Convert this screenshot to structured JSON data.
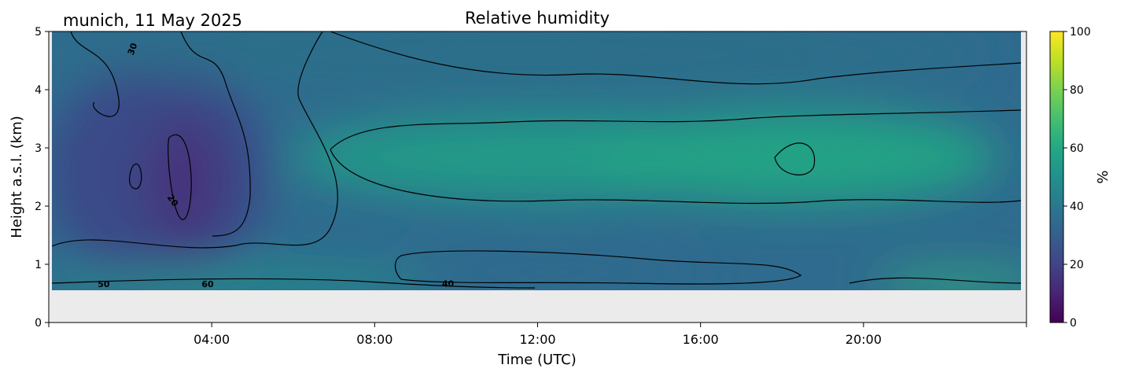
{
  "chart_data": {
    "type": "heatmap",
    "title": "Relative humidity",
    "subtitle": "munich, 11 May 2025",
    "xlabel": "Time (UTC)",
    "ylabel": "Height a.s.l. (km)",
    "colorbar_label": "%",
    "colormap": "viridis",
    "xlim_hours": [
      0,
      24
    ],
    "ylim_km": [
      0,
      5
    ],
    "x_ticks": [
      {
        "value": 4,
        "label": "04:00"
      },
      {
        "value": 8,
        "label": "08:00"
      },
      {
        "value": 12,
        "label": "12:00"
      },
      {
        "value": 16,
        "label": "16:00"
      },
      {
        "value": 20,
        "label": "20:00"
      }
    ],
    "y_ticks": [
      {
        "value": 0,
        "label": "0"
      },
      {
        "value": 1,
        "label": "1"
      },
      {
        "value": 2,
        "label": "2"
      },
      {
        "value": 3,
        "label": "3"
      },
      {
        "value": 4,
        "label": "4"
      },
      {
        "value": 5,
        "label": "5"
      }
    ],
    "colorbar_range": [
      0,
      100
    ],
    "colorbar_ticks": [
      {
        "value": 0,
        "label": "0"
      },
      {
        "value": 20,
        "label": "20"
      },
      {
        "value": 40,
        "label": "40"
      },
      {
        "value": 60,
        "label": "60"
      },
      {
        "value": 80,
        "label": "80"
      },
      {
        "value": 100,
        "label": "100"
      }
    ],
    "data_bottom_km": 0.55,
    "below_data_color": "#ebebeb",
    "contour_labels": [
      {
        "text": "30",
        "x": 2.05,
        "y": 4.7,
        "rotate": -70
      },
      {
        "text": "20",
        "x": 3.05,
        "y": 2.1,
        "rotate": 55
      },
      {
        "text": "50",
        "x": 1.35,
        "y": 0.66,
        "rotate": 0
      },
      {
        "text": "60",
        "x": 3.9,
        "y": 0.66,
        "rotate": 0
      },
      {
        "text": "40",
        "x": 9.8,
        "y": 0.67,
        "rotate": 0
      }
    ],
    "humidity_fields": {
      "top_band_pct": [
        {
          "x": 0,
          "y": 4.5,
          "rh": 30
        },
        {
          "x": 4,
          "y": 4.5,
          "rh": 28
        },
        {
          "x": 8,
          "y": 4.5,
          "rh": 40
        },
        {
          "x": 12,
          "y": 4.5,
          "rh": 40
        },
        {
          "x": 16,
          "y": 4.5,
          "rh": 40
        },
        {
          "x": 20,
          "y": 4.5,
          "rh": 40
        }
      ],
      "mid_band_pct": [
        {
          "x": 3.2,
          "y": 2.6,
          "rh": 18
        },
        {
          "x": 12,
          "y": 2.8,
          "rh": 55
        },
        {
          "x": 18.5,
          "y": 2.8,
          "rh": 62
        }
      ],
      "low_band_pct": [
        {
          "x": 2,
          "y": 0.7,
          "rh": 50
        },
        {
          "x": 12,
          "y": 0.9,
          "rh": 40
        },
        {
          "x": 23,
          "y": 0.6,
          "rh": 65
        }
      ]
    }
  }
}
